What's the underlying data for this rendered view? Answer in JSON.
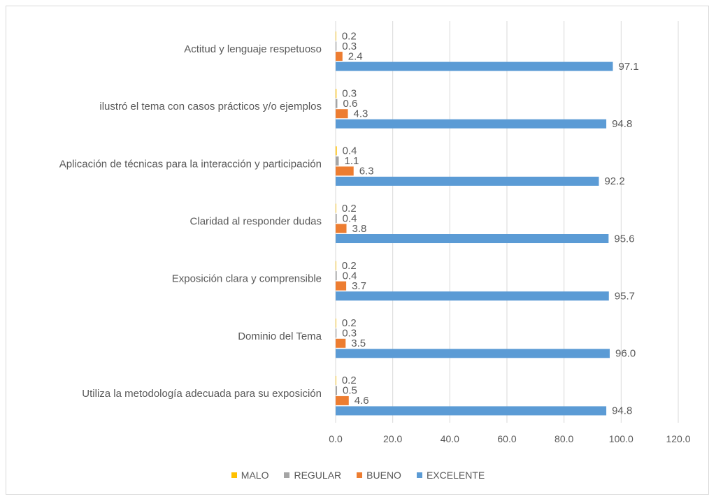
{
  "chart_data": {
    "type": "bar",
    "orientation": "horizontal",
    "title": "",
    "xlabel": "",
    "ylabel": "",
    "xlim": [
      0,
      120
    ],
    "x_ticks": [
      "0.0",
      "20.0",
      "40.0",
      "60.0",
      "80.0",
      "100.0",
      "120.0"
    ],
    "grid": true,
    "legend_position": "bottom",
    "categories": [
      "Actitud y lenguaje respetuoso",
      "ilustró el tema con casos prácticos y/o ejemplos",
      "Aplicación de técnicas para la interacción y participación",
      "Claridad al responder dudas",
      "Exposición clara y comprensible",
      "Dominio del Tema",
      "Utiliza la metodología adecuada para su exposición"
    ],
    "series": [
      {
        "name": "MALO",
        "color": "#FFC000",
        "values": [
          0.2,
          0.3,
          0.4,
          0.2,
          0.2,
          0.2,
          0.2
        ]
      },
      {
        "name": "REGULAR",
        "color": "#A5A5A5",
        "values": [
          0.3,
          0.6,
          1.1,
          0.4,
          0.4,
          0.3,
          0.5
        ]
      },
      {
        "name": "BUENO",
        "color": "#ED7D31",
        "values": [
          2.4,
          4.3,
          6.3,
          3.8,
          3.7,
          3.5,
          4.6
        ]
      },
      {
        "name": "EXCELENTE",
        "color": "#5B9BD5",
        "values": [
          97.1,
          94.8,
          92.2,
          95.6,
          95.7,
          96.0,
          94.8
        ]
      }
    ]
  }
}
